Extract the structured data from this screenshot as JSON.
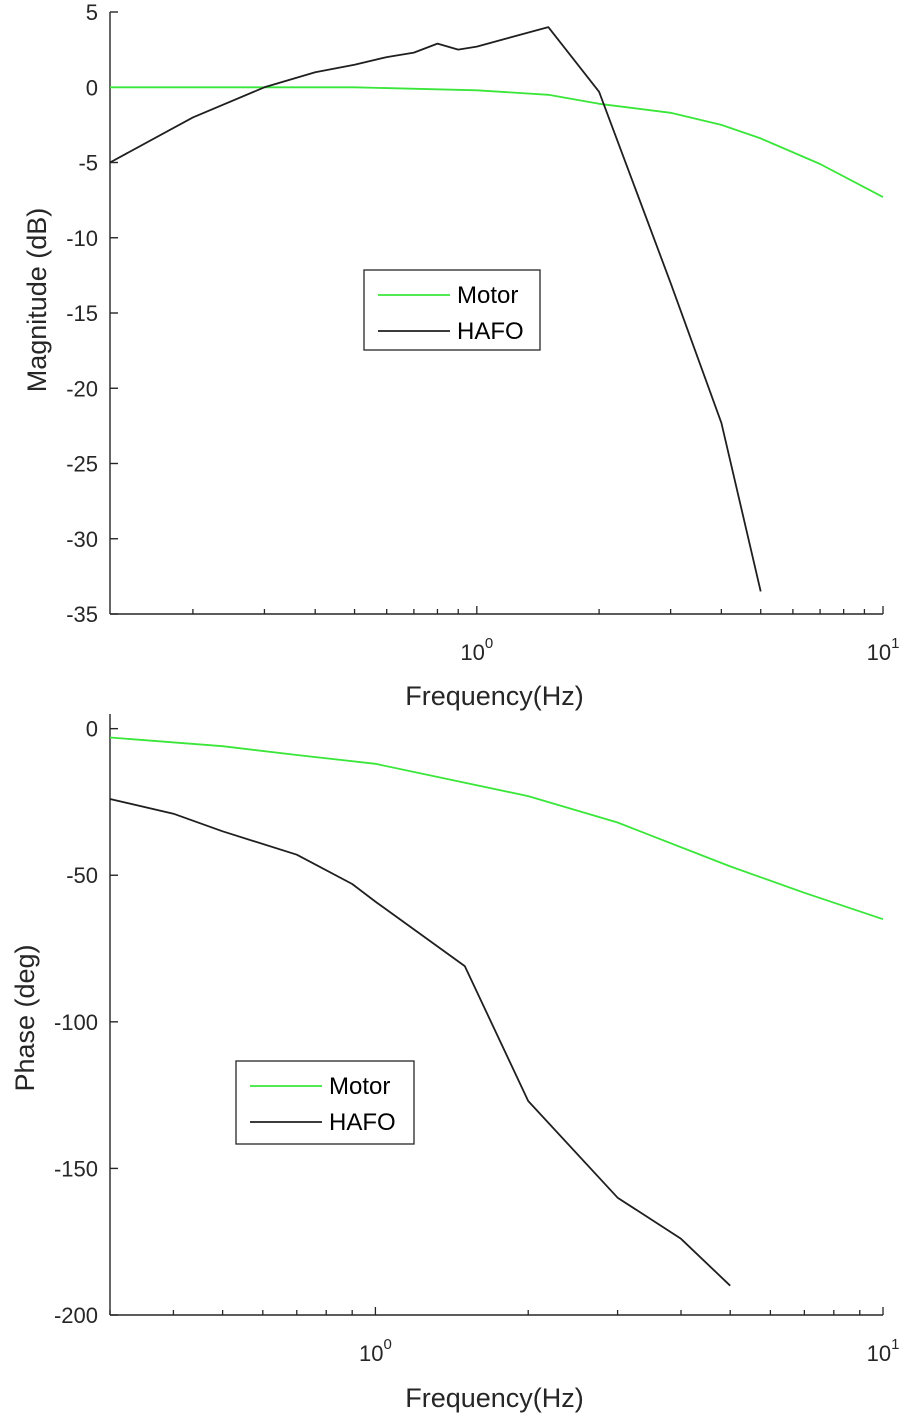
{
  "colors": {
    "motor": "#39e639",
    "hafo": "#1f1f1f",
    "axis": "#262626"
  },
  "chart_data": [
    {
      "type": "line",
      "name": "magnitude",
      "xscale": "log",
      "xlim": [
        0.125,
        10
      ],
      "ylim": [
        -35,
        5
      ],
      "xlabel": "Frequency(Hz)",
      "ylabel": "Magnitude (dB)",
      "xticks": [
        {
          "base": "10",
          "exp": "0",
          "value": 1
        },
        {
          "base": "10",
          "exp": "1",
          "value": 10
        }
      ],
      "yticks": [
        {
          "label": "5",
          "value": 5
        },
        {
          "label": "0",
          "value": 0
        },
        {
          "label": "-5",
          "value": -5
        },
        {
          "label": "-10",
          "value": -10
        },
        {
          "label": "-15",
          "value": -15
        },
        {
          "label": "-20",
          "value": -20
        },
        {
          "label": "-25",
          "value": -25
        },
        {
          "label": "-30",
          "value": -30
        },
        {
          "label": "-35",
          "value": -35
        }
      ],
      "legend": {
        "position": "center-left"
      },
      "series": [
        {
          "name": "Motor",
          "color_key": "motor",
          "x": [
            0.125,
            0.5,
            1,
            1.5,
            2,
            3,
            4,
            5,
            7,
            10
          ],
          "y": [
            0,
            0,
            -0.2,
            -0.5,
            -1.1,
            -1.7,
            -2.5,
            -3.4,
            -5.1,
            -7.3
          ]
        },
        {
          "name": "HAFO",
          "color_key": "hafo",
          "x": [
            0.125,
            0.2,
            0.3,
            0.4,
            0.5,
            0.6,
            0.7,
            0.8,
            0.9,
            1.0,
            1.5,
            2.0,
            3.0,
            4.0,
            5.0
          ],
          "y": [
            -5,
            -2,
            0,
            1.0,
            1.5,
            2.0,
            2.3,
            2.9,
            2.5,
            2.7,
            4.0,
            -0.3,
            -13,
            -22.3,
            -33.5
          ]
        }
      ]
    },
    {
      "type": "line",
      "name": "phase",
      "xscale": "log",
      "xlim": [
        0.3,
        10
      ],
      "ylim": [
        -200,
        5
      ],
      "xlabel": "Frequency(Hz)",
      "ylabel": "Phase (deg)",
      "xticks": [
        {
          "base": "10",
          "exp": "0",
          "value": 1
        },
        {
          "base": "10",
          "exp": "1",
          "value": 10
        }
      ],
      "yticks": [
        {
          "label": "0",
          "value": 0
        },
        {
          "label": "-50",
          "value": -50
        },
        {
          "label": "-100",
          "value": -100
        },
        {
          "label": "-150",
          "value": -150
        },
        {
          "label": "-200",
          "value": -200
        }
      ],
      "legend": {
        "position": "lower-left"
      },
      "series": [
        {
          "name": "Motor",
          "color_key": "motor",
          "x": [
            0.3,
            0.5,
            0.7,
            1,
            2,
            3,
            5,
            7,
            10
          ],
          "y": [
            -3,
            -6,
            -9,
            -12,
            -23,
            -32,
            -47,
            -56,
            -65
          ]
        },
        {
          "name": "HAFO",
          "color_key": "hafo",
          "x": [
            0.3,
            0.4,
            0.5,
            0.7,
            0.9,
            1.0,
            1.5,
            2.0,
            3.0,
            4.0,
            5.0
          ],
          "y": [
            -24,
            -29,
            -35,
            -43,
            -53,
            -59,
            -81,
            -127,
            -160,
            -174,
            -190
          ]
        }
      ]
    }
  ]
}
